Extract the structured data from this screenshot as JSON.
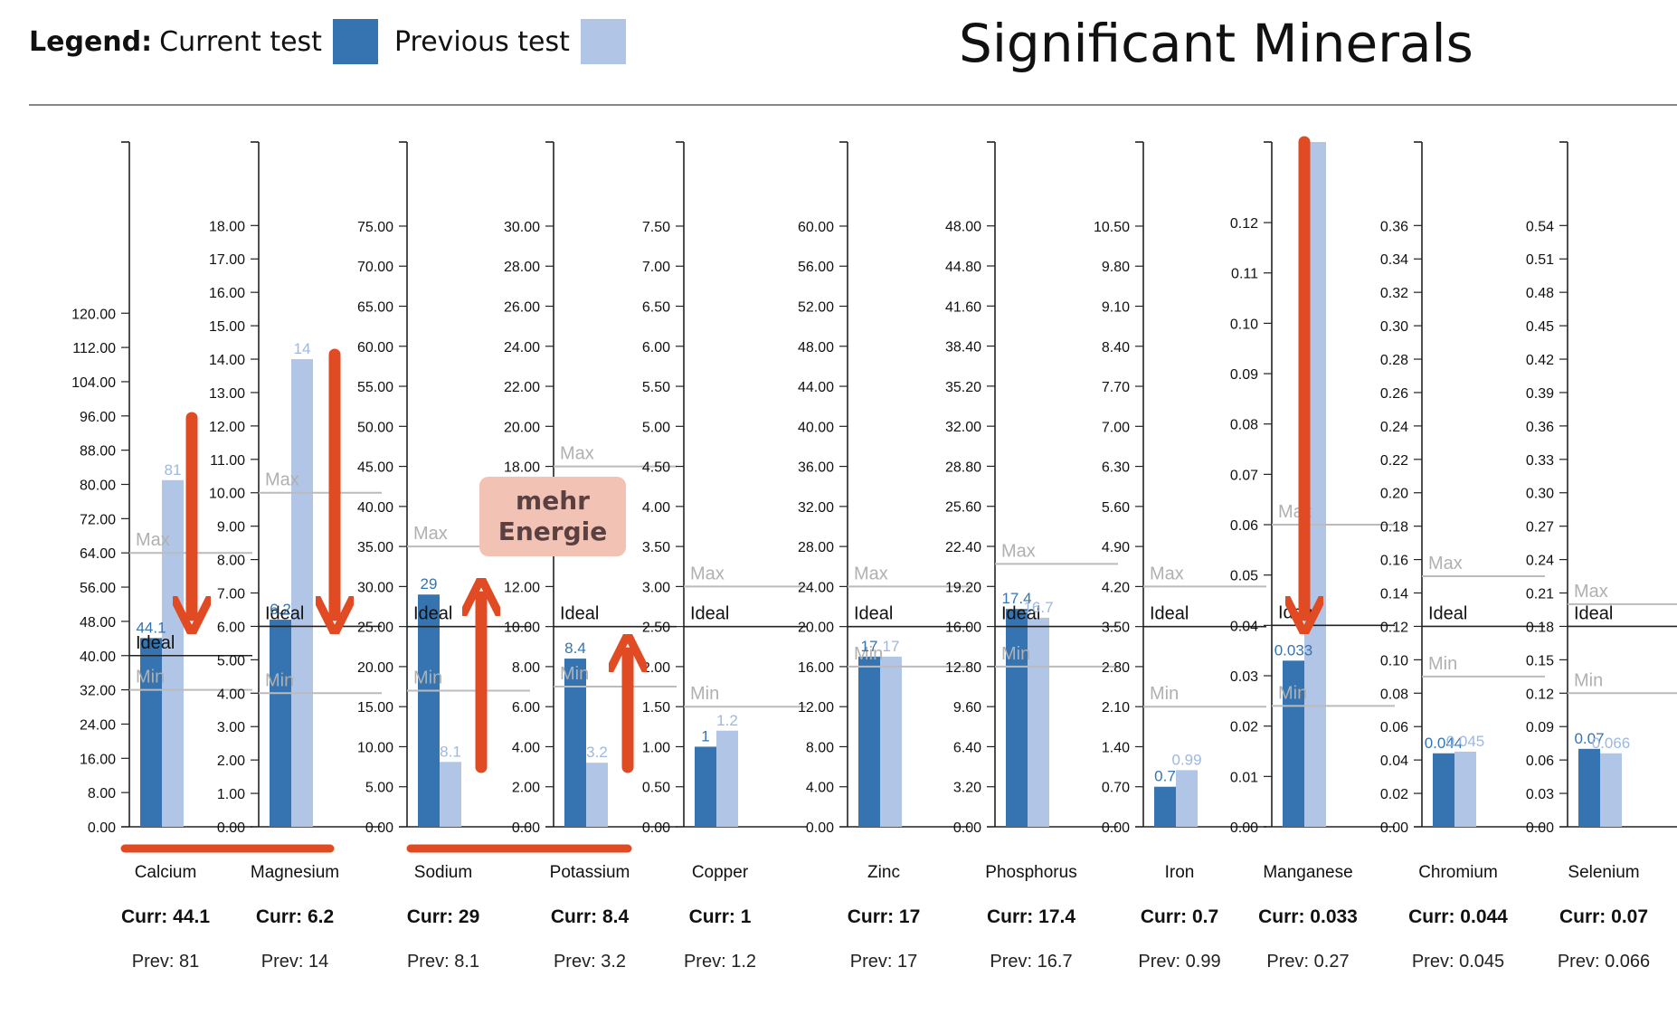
{
  "legend": {
    "label": "Legend:",
    "current": "Current test",
    "previous": "Previous test"
  },
  "colors": {
    "current": "#3574b0",
    "previous": "#b1c6e6",
    "axis": "#222222",
    "ref_line": "#bbbbbb",
    "ideal_line": "#222222",
    "annotation": "#e14b24",
    "current_label": "#3574b0",
    "previous_label": "#9db8e0"
  },
  "title": "Significant Minerals",
  "annotation_box": "mehr\nEnergie",
  "chart_data": {
    "type": "bar",
    "title": "Significant Minerals",
    "series_names": [
      "Current test",
      "Previous test"
    ],
    "reference_labels": {
      "max": "Max",
      "ideal": "Ideal",
      "min": "Min"
    },
    "curr_prefix": "Curr: ",
    "prev_prefix": "Prev: ",
    "minerals": [
      {
        "name": "Calcium",
        "current": 44.1,
        "previous": 81,
        "current_label": "44.1",
        "previous_label": "81",
        "ticks": [
          "0.00",
          "8.00",
          "16.00",
          "24.00",
          "32.00",
          "40.00",
          "48.00",
          "56.00",
          "64.00",
          "72.00",
          "80.00",
          "88.00",
          "96.00",
          "104.00",
          "112.00",
          "120.00"
        ],
        "max": 160,
        "ref_max": 64,
        "ideal": 40,
        "ref_min": 32,
        "curr_text": "44.1",
        "prev_text": "81"
      },
      {
        "name": "Magnesium",
        "current": 6.2,
        "previous": 14,
        "current_label": "6.2",
        "previous_label": "14",
        "ticks": [
          "0.00",
          "1.00",
          "2.00",
          "3.00",
          "4.00",
          "5.00",
          "6.00",
          "7.00",
          "8.00",
          "9.00",
          "10.00",
          "11.00",
          "12.00",
          "13.00",
          "14.00",
          "15.00",
          "16.00",
          "17.00",
          "18.00"
        ],
        "max": 20.5,
        "ref_max": 10,
        "ideal": 6,
        "ref_min": 4,
        "curr_text": "6.2",
        "prev_text": "14"
      },
      {
        "name": "Sodium",
        "current": 29,
        "previous": 8.1,
        "current_label": "29",
        "previous_label": "8.1",
        "ticks": [
          "0.00",
          "5.00",
          "10.00",
          "15.00",
          "20.00",
          "25.00",
          "30.00",
          "35.00",
          "40.00",
          "45.00",
          "50.00",
          "55.00",
          "60.00",
          "65.00",
          "70.00",
          "75.00"
        ],
        "max": 85.5,
        "ref_max": 35,
        "ideal": 25,
        "ref_min": 17,
        "curr_text": "29",
        "prev_text": "8.1"
      },
      {
        "name": "Potassium",
        "current": 8.4,
        "previous": 3.2,
        "current_label": "8.4",
        "previous_label": "3.2",
        "ticks": [
          "0.00",
          "2.00",
          "4.00",
          "6.00",
          "8.00",
          "10.00",
          "12.00",
          "14.00",
          "16.00",
          "18.00",
          "20.00",
          "22.00",
          "24.00",
          "26.00",
          "28.00",
          "30.00"
        ],
        "max": 34.2,
        "ref_max": 18,
        "ideal": 10,
        "ref_min": 7,
        "curr_text": "8.4",
        "prev_text": "3.2"
      },
      {
        "name": "Copper",
        "current": 1,
        "previous": 1.2,
        "current_label": "1",
        "previous_label": "1.2",
        "ticks": [
          "0.00",
          "0.50",
          "1.00",
          "1.50",
          "2.00",
          "2.50",
          "3.00",
          "3.50",
          "4.00",
          "4.50",
          "5.00",
          "5.50",
          "6.00",
          "6.50",
          "7.00",
          "7.50"
        ],
        "max": 8.55,
        "ref_max": 3,
        "ideal": 2.5,
        "ref_min": 1.5,
        "curr_text": "1",
        "prev_text": "1.2"
      },
      {
        "name": "Zinc",
        "current": 17,
        "previous": 17,
        "current_label": "17",
        "previous_label": "17",
        "ticks": [
          "0.00",
          "4.00",
          "8.00",
          "12.00",
          "16.00",
          "20.00",
          "24.00",
          "28.00",
          "32.00",
          "36.00",
          "40.00",
          "44.00",
          "48.00",
          "52.00",
          "56.00",
          "60.00"
        ],
        "max": 68.4,
        "ref_max": 24,
        "ideal": 20,
        "ref_min": 16,
        "curr_text": "17",
        "prev_text": "17"
      },
      {
        "name": "Phosphorus",
        "current": 17.4,
        "previous": 16.7,
        "current_label": "17.4",
        "previous_label": "16.7",
        "ticks": [
          "0.00",
          "3.20",
          "6.40",
          "9.60",
          "12.80",
          "16.00",
          "19.20",
          "22.40",
          "25.60",
          "28.80",
          "32.00",
          "35.20",
          "38.40",
          "41.60",
          "44.80",
          "48.00"
        ],
        "max": 54.7,
        "ref_max": 21,
        "ideal": 16,
        "ref_min": 12.8,
        "curr_text": "17.4",
        "prev_text": "16.7"
      },
      {
        "name": "Iron",
        "current": 0.7,
        "previous": 0.99,
        "current_label": "0.7",
        "previous_label": "0.99",
        "ticks": [
          "0.00",
          "0.70",
          "1.40",
          "2.10",
          "2.80",
          "3.50",
          "4.20",
          "4.90",
          "5.60",
          "6.30",
          "7.00",
          "7.70",
          "8.40",
          "9.10",
          "9.80",
          "10.50"
        ],
        "max": 11.97,
        "ref_max": 4.2,
        "ideal": 3.5,
        "ref_min": 2.1,
        "curr_text": "0.7",
        "prev_text": "0.99"
      },
      {
        "name": "Manganese",
        "current": 0.033,
        "previous": 0.27,
        "current_label": "0.033",
        "previous_label": "",
        "ticks": [
          "0.00",
          "0.01",
          "0.02",
          "0.03",
          "0.04",
          "0.05",
          "0.06",
          "0.07",
          "0.08",
          "0.09",
          "0.10",
          "0.11",
          "0.12"
        ],
        "max": 0.136,
        "ref_max": 0.06,
        "ideal": 0.04,
        "ref_min": 0.024,
        "curr_text": "0.033",
        "prev_text": "0.27"
      },
      {
        "name": "Chromium",
        "current": 0.044,
        "previous": 0.045,
        "current_label": "0.044",
        "previous_label": "0.045",
        "ticks": [
          "0.00",
          "0.02",
          "0.04",
          "0.06",
          "0.08",
          "0.10",
          "0.12",
          "0.14",
          "0.16",
          "0.18",
          "0.20",
          "0.22",
          "0.24",
          "0.26",
          "0.28",
          "0.30",
          "0.32",
          "0.34",
          "0.36"
        ],
        "max": 0.41,
        "ref_max": 0.15,
        "ideal": 0.12,
        "ref_min": 0.09,
        "curr_text": "0.044",
        "prev_text": "0.045"
      },
      {
        "name": "Selenium",
        "current": 0.07,
        "previous": 0.066,
        "current_label": "0.07",
        "previous_label": "0.066",
        "ticks": [
          "0.00",
          "0.03",
          "0.06",
          "0.09",
          "0.12",
          "0.15",
          "0.18",
          "0.21",
          "0.24",
          "0.27",
          "0.30",
          "0.33",
          "0.36",
          "0.39",
          "0.42",
          "0.45",
          "0.48",
          "0.51",
          "0.54"
        ],
        "max": 0.615,
        "ref_max": 0.2,
        "ideal": 0.18,
        "ref_min": 0.12,
        "curr_text": "0.07",
        "prev_text": "0.066"
      }
    ]
  }
}
